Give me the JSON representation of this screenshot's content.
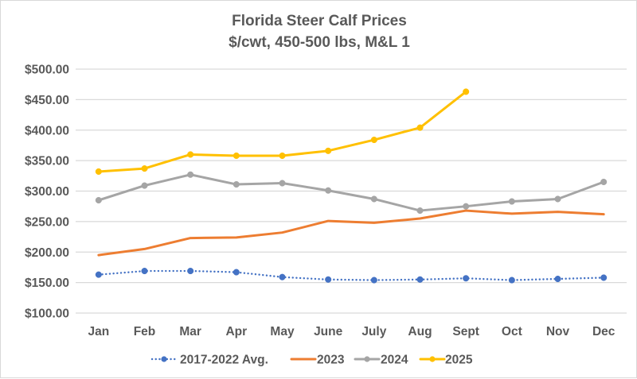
{
  "chart_data": {
    "type": "line",
    "title": "Florida Steer Calf Prices",
    "subtitle": "$/cwt, 450-500 lbs, M&L 1",
    "xlabel": "",
    "ylabel": "",
    "ylim": [
      100,
      500
    ],
    "y_ticks": [
      100,
      150,
      200,
      250,
      300,
      350,
      400,
      450,
      500
    ],
    "y_tick_labels": [
      "$100.00",
      "$150.00",
      "$200.00",
      "$250.00",
      "$300.00",
      "$350.00",
      "$400.00",
      "$450.00",
      "$500.00"
    ],
    "grid": true,
    "legend_position": "bottom",
    "categories": [
      "Jan",
      "Feb",
      "Mar",
      "Apr",
      "May",
      "June",
      "July",
      "Aug",
      "Sept",
      "Oct",
      "Nov",
      "Dec"
    ],
    "series": [
      {
        "name": "2017-2022 Avg.",
        "color": "#4472C4",
        "line_style": "dotted",
        "markers": true,
        "values": [
          163,
          169,
          169,
          167,
          159,
          155,
          154,
          155,
          157,
          154,
          156,
          158
        ]
      },
      {
        "name": "2023",
        "color": "#ED7D31",
        "line_style": "solid",
        "markers": false,
        "values": [
          195,
          205,
          223,
          224,
          232,
          251,
          248,
          255,
          268,
          263,
          266,
          262
        ]
      },
      {
        "name": "2024",
        "color": "#A5A5A5",
        "line_style": "solid",
        "markers": true,
        "values": [
          285,
          309,
          327,
          311,
          313,
          301,
          287,
          268,
          275,
          283,
          287,
          315
        ]
      },
      {
        "name": "2025",
        "color": "#FFC000",
        "line_style": "solid",
        "markers": true,
        "values": [
          332,
          337,
          360,
          358,
          358,
          366,
          384,
          404,
          463,
          null,
          null,
          null
        ]
      }
    ]
  }
}
